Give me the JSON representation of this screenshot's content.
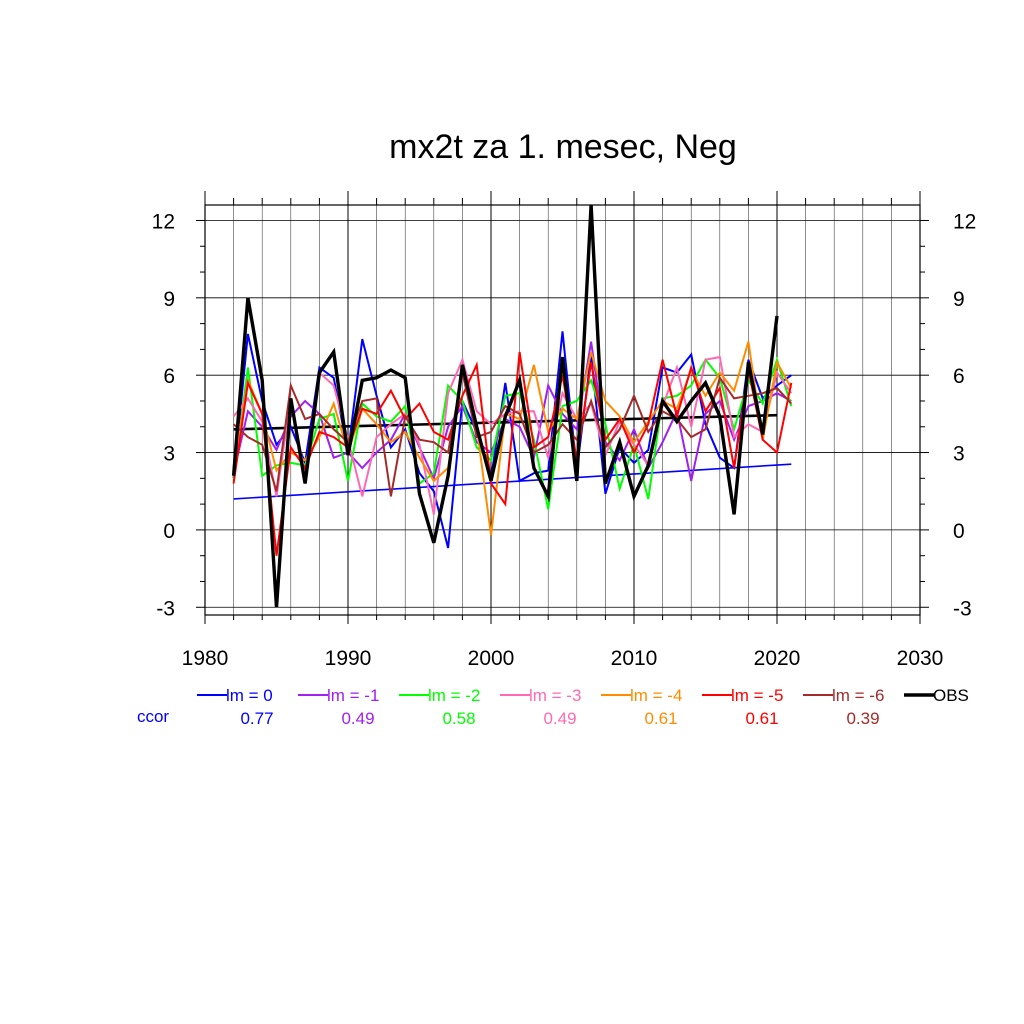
{
  "chart_data": {
    "type": "line",
    "title": "mx2t za 1. mesec, Neg",
    "xlabel": "",
    "ylabel": "",
    "xlim": [
      1980,
      2030
    ],
    "ylim": [
      -3.3,
      12.6
    ],
    "x_ticks": [
      1980,
      1990,
      2000,
      2010,
      2020,
      2030
    ],
    "y_ticks": [
      -3,
      0,
      3,
      6,
      9,
      12
    ],
    "grid": true,
    "legend_placement": "below",
    "ccor_label": "ccor",
    "x": [
      1982,
      1983,
      1984,
      1985,
      1986,
      1987,
      1988,
      1989,
      1990,
      1991,
      1992,
      1993,
      1994,
      1995,
      1996,
      1997,
      1998,
      1999,
      2000,
      2001,
      2002,
      2003,
      2004,
      2005,
      2006,
      2007,
      2008,
      2009,
      2010,
      2011,
      2012,
      2013,
      2014,
      2015,
      2016,
      2017,
      2018,
      2019,
      2020,
      2021
    ],
    "series": [
      {
        "name": "lm = 0",
        "ccor": "0.77",
        "color": "#0000ff",
        "width": 2,
        "values": [
          2.0,
          7.6,
          5.0,
          3.3,
          4.0,
          2.6,
          6.3,
          5.9,
          3.0,
          7.4,
          5.2,
          3.2,
          3.9,
          2.2,
          1.5,
          -0.7,
          5.0,
          3.8,
          2.0,
          5.7,
          1.9,
          2.2,
          2.3,
          7.7,
          2.3,
          6.8,
          1.4,
          3.2,
          2.6,
          3.1,
          6.3,
          6.1,
          6.8,
          4.1,
          2.8,
          2.4,
          6.6,
          5.1,
          5.6,
          6.0
        ]
      },
      {
        "name": "lm = -1",
        "ccor": "0.49",
        "color": "#a020f0",
        "width": 2,
        "values": [
          2.2,
          4.6,
          4.0,
          3.1,
          4.4,
          5.0,
          4.5,
          2.8,
          3.0,
          2.4,
          3.0,
          3.5,
          4.5,
          3.2,
          2.0,
          4.0,
          4.8,
          3.4,
          3.0,
          4.3,
          4.0,
          2.8,
          5.6,
          4.5,
          3.9,
          7.3,
          3.4,
          2.7,
          3.9,
          2.4,
          3.4,
          4.6,
          1.9,
          4.5,
          5.0,
          3.5,
          4.8,
          5.0,
          5.3,
          5.0
        ]
      },
      {
        "name": "lm = -2",
        "ccor": "0.58",
        "color": "#00ff00",
        "width": 2,
        "values": [
          1.9,
          6.3,
          2.1,
          2.5,
          2.6,
          2.5,
          4.3,
          4.5,
          1.9,
          4.9,
          4.4,
          4.2,
          4.8,
          1.8,
          2.2,
          5.6,
          5.0,
          3.2,
          2.7,
          5.2,
          5.3,
          3.5,
          0.8,
          4.8,
          5.0,
          5.8,
          4.1,
          1.6,
          3.3,
          1.2,
          5.1,
          5.2,
          5.6,
          6.6,
          5.9,
          3.9,
          5.8,
          4.9,
          6.6,
          4.8
        ]
      },
      {
        "name": "lm = -3",
        "ccor": "0.49",
        "color": "#ff69b4",
        "width": 2,
        "values": [
          4.4,
          5.1,
          4.2,
          1.3,
          5.1,
          2.1,
          6.1,
          5.6,
          3.5,
          1.3,
          3.6,
          4.1,
          4.5,
          3.3,
          0.6,
          5.3,
          6.6,
          4.6,
          4.1,
          4.5,
          4.6,
          4.6,
          2.8,
          5.3,
          4.3,
          4.9,
          2.9,
          4.2,
          3.3,
          2.5,
          4.8,
          6.3,
          4.0,
          6.6,
          6.7,
          3.6,
          4.1,
          3.8,
          6.1,
          5.3
        ]
      },
      {
        "name": "lm = -4",
        "ccor": "0.61",
        "color": "#ff8c00",
        "width": 2,
        "values": [
          2.4,
          5.8,
          4.5,
          2.3,
          3.0,
          2.7,
          3.6,
          4.9,
          3.0,
          4.7,
          4.1,
          3.4,
          3.8,
          2.8,
          1.9,
          2.4,
          6.2,
          4.0,
          -0.2,
          4.5,
          4.3,
          6.4,
          3.8,
          4.7,
          4.3,
          6.9,
          5.0,
          4.4,
          3.4,
          4.2,
          5.0,
          4.7,
          6.2,
          5.2,
          6.1,
          5.4,
          7.3,
          3.5,
          6.5,
          5.5
        ]
      },
      {
        "name": "lm = -5",
        "ccor": "0.61",
        "color": "#ff0000",
        "width": 2,
        "values": [
          1.8,
          5.7,
          4.5,
          -1.0,
          3.2,
          2.4,
          3.8,
          3.6,
          3.2,
          4.7,
          4.5,
          5.4,
          4.3,
          4.9,
          3.8,
          3.5,
          5.2,
          6.4,
          1.8,
          1.0,
          6.9,
          3.2,
          3.6,
          6.0,
          2.7,
          6.5,
          3.5,
          4.3,
          3.0,
          4.1,
          6.6,
          4.4,
          6.3,
          4.6,
          5.5,
          2.4,
          6.2,
          3.5,
          3.0,
          5.7
        ]
      },
      {
        "name": "lm = -6",
        "ccor": "0.39",
        "color": "#a52a2a",
        "width": 2,
        "values": [
          4.1,
          3.6,
          3.3,
          1.5,
          5.6,
          4.3,
          4.5,
          3.9,
          3.4,
          5.0,
          5.1,
          1.3,
          4.4,
          3.5,
          3.4,
          3.0,
          6.1,
          3.6,
          3.8,
          4.8,
          4.5,
          3.0,
          3.3,
          4.1,
          3.5,
          5.0,
          3.2,
          3.9,
          5.2,
          3.8,
          4.6,
          4.3,
          3.6,
          3.9,
          5.9,
          5.1,
          5.2,
          5.3,
          5.5,
          4.9
        ]
      },
      {
        "name": "OBS",
        "ccor": "",
        "color": "#000000",
        "width": 3.4,
        "values": [
          2.1,
          9.0,
          5.8,
          -3.0,
          5.1,
          1.8,
          6.1,
          6.9,
          2.9,
          5.8,
          5.9,
          6.2,
          5.9,
          1.4,
          -0.5,
          2.1,
          6.4,
          4.0,
          1.9,
          4.4,
          5.8,
          2.4,
          1.3,
          6.7,
          1.9,
          12.6,
          1.8,
          3.4,
          1.3,
          2.5,
          5.0,
          4.2,
          5.0,
          5.7,
          4.4,
          0.6,
          6.5,
          3.7,
          8.3,
          null
        ]
      }
    ],
    "trend_lines": [
      {
        "series": "lm = 0",
        "color": "#0000ff",
        "width": 1.6,
        "x": [
          1982,
          2021
        ],
        "y": [
          1.2,
          2.55
        ]
      },
      {
        "series": "OBS",
        "color": "#000000",
        "width": 2.6,
        "x": [
          1982,
          2020
        ],
        "y": [
          3.9,
          4.45
        ]
      }
    ]
  }
}
